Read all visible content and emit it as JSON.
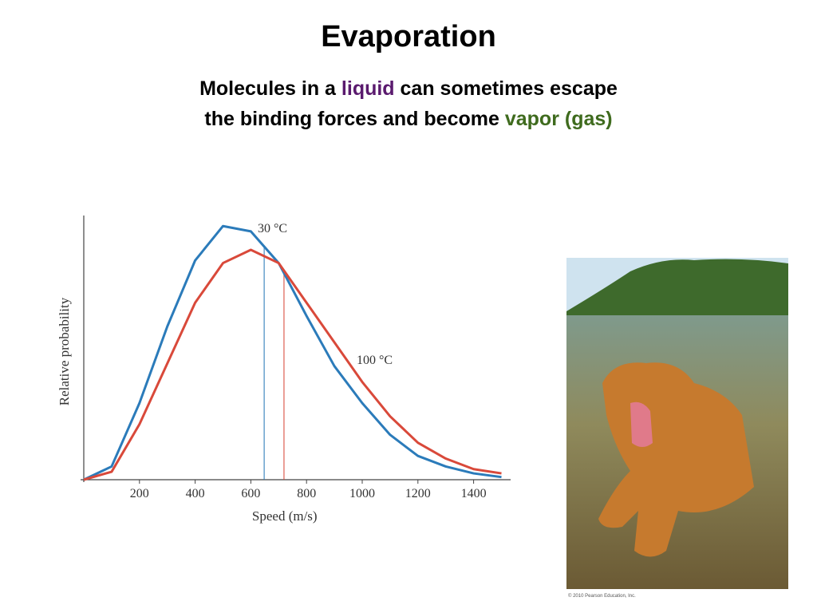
{
  "slide": {
    "title": "Evaporation",
    "subtitle": [
      [
        "Molecules in a ",
        "liquid",
        " can sometimes escape"
      ],
      [
        "the binding forces and become ",
        "vapor (gas)"
      ]
    ],
    "credit": "© 2010 Pearson Education, Inc."
  },
  "chart_data": {
    "type": "line",
    "x_label": "Speed (m/s)",
    "y_label": "Relative probability",
    "x": [
      0,
      100,
      200,
      300,
      400,
      500,
      600,
      700,
      800,
      900,
      1000,
      1100,
      1200,
      1300,
      1400,
      1500
    ],
    "series": [
      {
        "name": "30 °C",
        "color": "#2b7bba",
        "values": [
          0,
          5,
          29,
          58,
          83,
          96,
          94,
          82,
          62,
          43,
          29,
          17,
          9,
          5,
          2.4,
          1
        ],
        "mean_x": 648
      },
      {
        "name": "100 °C",
        "color": "#d9493a",
        "values": [
          0,
          3,
          21,
          44,
          67,
          82,
          87,
          82,
          67,
          52,
          37,
          24,
          14,
          8,
          4,
          2.4
        ],
        "mean_x": 719
      }
    ],
    "xlim": [
      0,
      1500
    ],
    "xticks": [
      200,
      400,
      600,
      800,
      1000,
      1200,
      1400
    ],
    "ylim": [
      0,
      100
    ],
    "grid": false
  }
}
